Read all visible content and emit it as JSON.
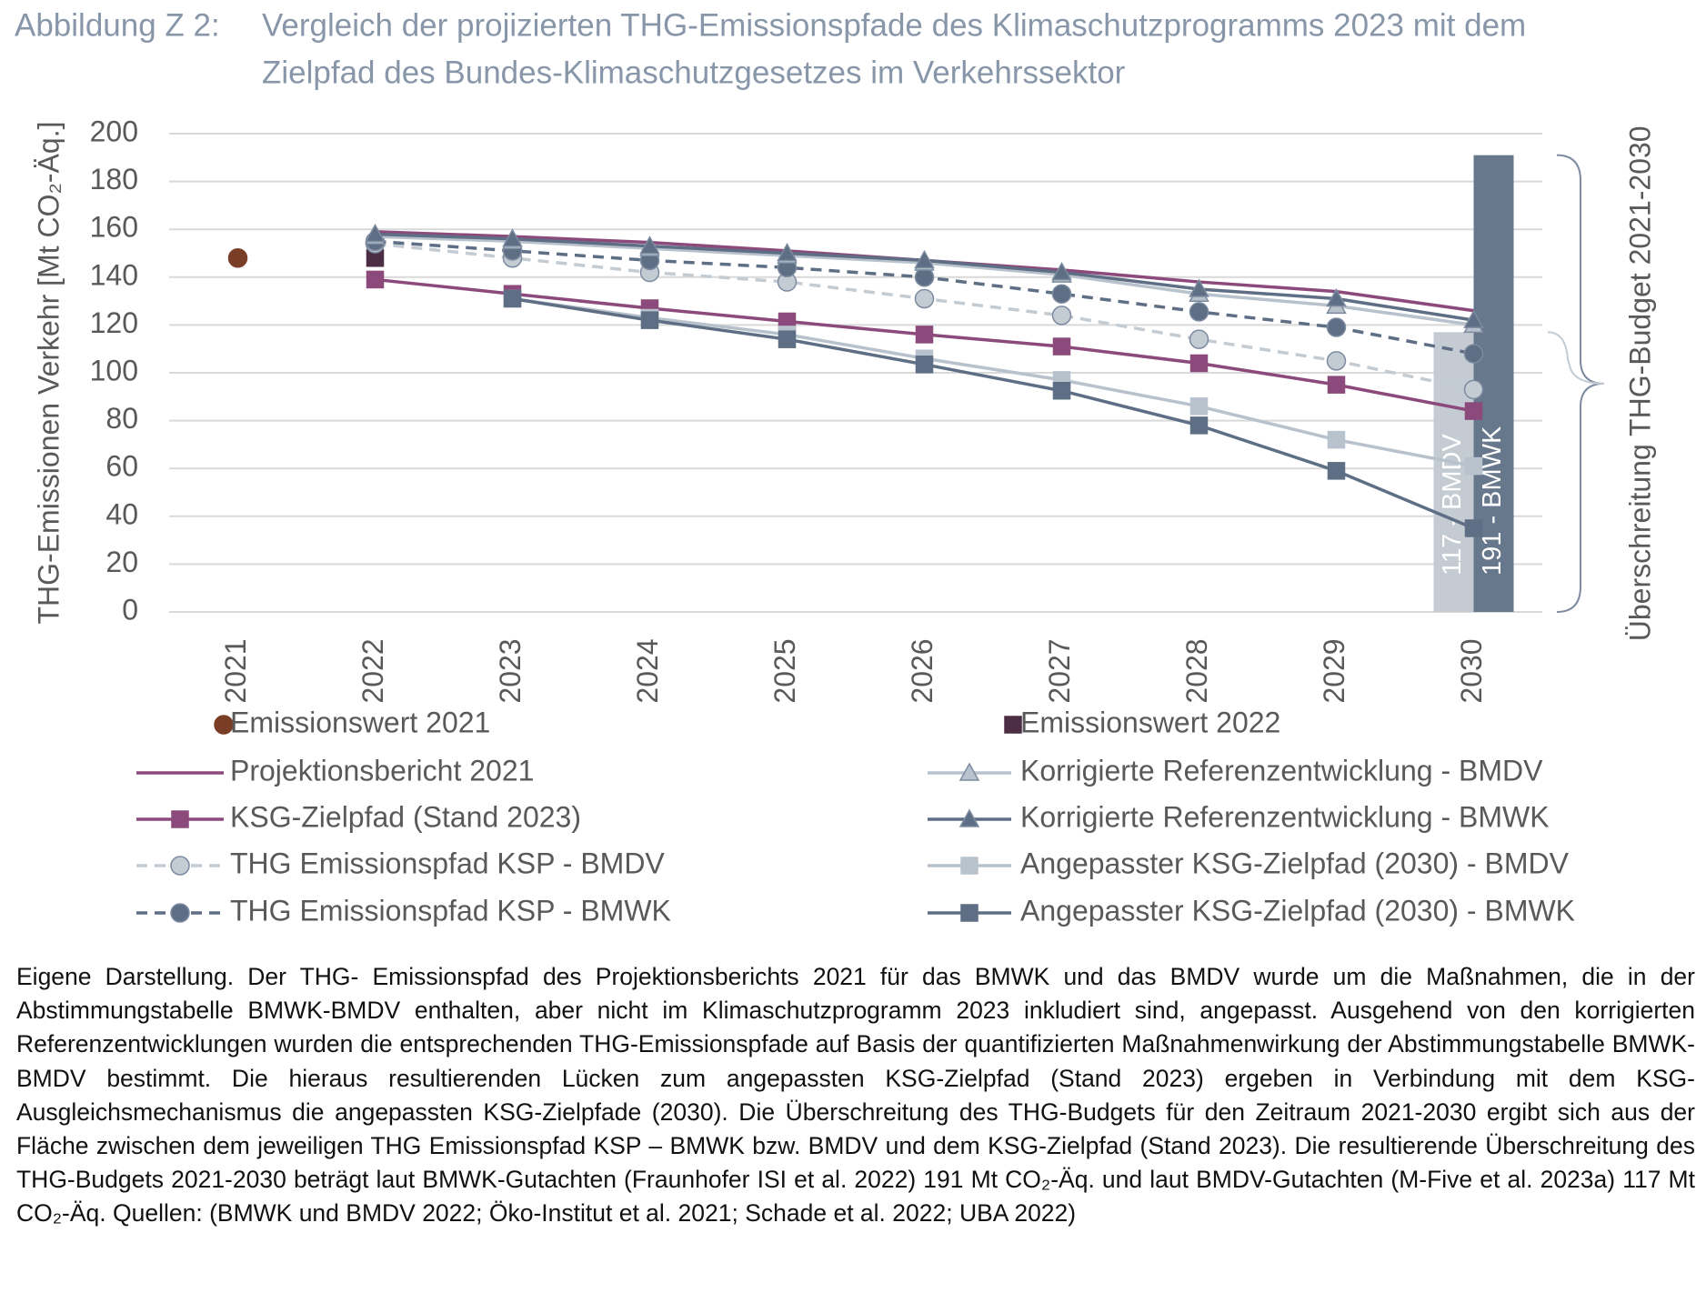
{
  "chart_data": {
    "type": "line",
    "figure_label": "Abbildung Z 2:",
    "title_lines": [
      "Vergleich der projizierten THG-Emissionspfade des Klimaschutzprogramms 2023 mit dem",
      "Zielpfad des Bundes-Klimaschutzgesetzes im Verkehrssektor"
    ],
    "y_label": "THG-Emissionen Verkehr [Mt CO₂-Äq.]",
    "annotation": "Überschreitung THG-Budget 2021-2030",
    "categories": [
      "2021",
      "2022",
      "2023",
      "2024",
      "2025",
      "2026",
      "2027",
      "2028",
      "2029",
      "2030"
    ],
    "ylim": [
      0,
      200
    ],
    "yticks": [
      0,
      20,
      40,
      60,
      80,
      100,
      120,
      140,
      160,
      180,
      200
    ],
    "grid": true,
    "bars": {
      "category": "2030",
      "values": [
        117,
        191
      ],
      "value_labels": [
        "117 - BMDV",
        "191 - BMWK"
      ],
      "colors": [
        "#c4cbd3",
        "#67778c"
      ]
    },
    "series": [
      {
        "name": "Emissionswert 2021",
        "color": "#7a3e26",
        "marker": "circle",
        "line": false,
        "values": [
          148,
          null,
          null,
          null,
          null,
          null,
          null,
          null,
          null,
          null
        ]
      },
      {
        "name": "Emissionswert 2022",
        "color": "#4b2d44",
        "marker": "square",
        "line": false,
        "values": [
          null,
          148,
          null,
          null,
          null,
          null,
          null,
          null,
          null,
          null
        ]
      },
      {
        "name": "Projektionsbericht 2021",
        "color": "#8b4a7b",
        "marker": "none",
        "line": true,
        "values": [
          null,
          159,
          157,
          154.5,
          151,
          147,
          143,
          138,
          134,
          126
        ]
      },
      {
        "name": "KSG-Zielpfad (Stand 2023)",
        "color": "#8b4a7b",
        "marker": "square",
        "line": true,
        "values": [
          null,
          139,
          133,
          127,
          121.5,
          116,
          111,
          104,
          95,
          84
        ]
      },
      {
        "name": "THG Emissionspfad KSP - BMDV",
        "color": "#c3cbd3",
        "marker": "circle",
        "line": true,
        "dashed": true,
        "values": [
          null,
          154,
          148,
          142,
          138,
          131,
          124,
          114,
          105,
          93
        ]
      },
      {
        "name": "THG Emissionspfad KSP - BMWK",
        "color": "#5e6e84",
        "marker": "circle",
        "line": true,
        "dashed": true,
        "values": [
          null,
          155,
          151,
          147,
          144,
          140,
          133,
          125.5,
          119,
          108
        ]
      },
      {
        "name": "Korrigierte Referenzentwicklung - BMDV",
        "color": "#b8c2cc",
        "marker": "triangle",
        "line": true,
        "values": [
          null,
          157,
          155,
          152,
          149,
          146,
          141,
          133,
          128,
          120
        ]
      },
      {
        "name": "Korrigierte Referenzentwicklung  - BMWK",
        "color": "#5e6e84",
        "marker": "triangle",
        "line": true,
        "values": [
          null,
          158,
          156,
          153,
          150,
          147,
          142,
          135,
          131,
          122
        ]
      },
      {
        "name": "Angepasster KSG-Zielpfad (2030) - BMDV",
        "color": "#b8c2cc",
        "marker": "square",
        "line": true,
        "values": [
          null,
          null,
          131,
          123,
          116,
          106,
          97,
          86,
          72,
          61
        ]
      },
      {
        "name": "Angepasster KSG-Zielpfad (2030) - BMWK",
        "color": "#5e6e84",
        "marker": "square",
        "line": true,
        "values": [
          null,
          null,
          131,
          122,
          114,
          103.5,
          92.5,
          78,
          59,
          35
        ]
      }
    ],
    "legend_columns": [
      [
        0,
        2,
        3,
        4,
        5
      ],
      [
        1,
        6,
        7,
        8,
        9
      ]
    ],
    "note": "Eigene Darstellung. Der THG- Emissionspfad des Projektionsberichts 2021 für das BMWK und das BMDV wurde um die Maßnahmen, die in der Abstimmungstabelle BMWK-BMDV enthalten, aber nicht im Klimaschutzprogramm 2023 inkludiert sind, angepasst. Ausgehend von den korrigierten Referenzentwicklungen wurden die entsprechenden THG-Emissionspfade auf Basis der quantifizierten Maßnahmenwirkung der Abstimmungstabelle BMWK-BMDV bestimmt. Die hieraus resultierenden Lücken zum angepassten KSG-Zielpfad (Stand 2023) ergeben in Verbindung mit dem KSG-Ausgleichsmechanismus die angepassten KSG-Zielpfade (2030). Die Überschreitung des THG-Budgets für den Zeitraum 2021-2030 ergibt sich aus der Fläche zwischen dem jeweiligen THG Emissionspfad KSP – BMWK bzw. BMDV und dem KSG-Zielpfad (Stand 2023). Die resultierende Überschreitung des THG-Budgets 2021-2030 beträgt laut BMWK-Gutachten (Fraunhofer ISI et al. 2022) 191 Mt CO₂-Äq. und laut BMDV-Gutachten (M-Five et al. 2023a) 117 Mt CO₂-Äq. Quellen: (BMWK und BMDV 2022; Öko-Institut et al. 2021; Schade et al. 2022; UBA 2022)"
  }
}
